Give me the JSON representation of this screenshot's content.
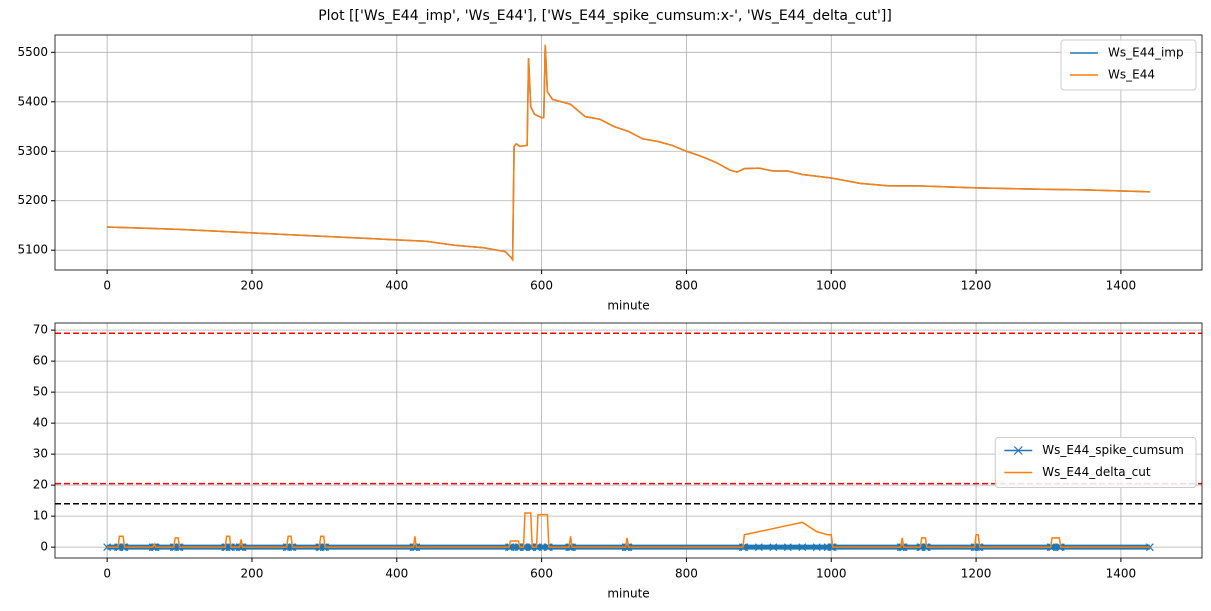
{
  "title": "Plot [['Ws_E44_imp', 'Ws_E44'], ['Ws_E44_spike_cumsum:x-', 'Ws_E44_delta_cut']]",
  "chart_data": [
    {
      "type": "line",
      "x_label": "minute",
      "x": [
        0,
        20,
        100,
        200,
        300,
        400,
        440,
        480,
        520,
        550,
        558,
        560,
        562,
        565,
        570,
        580,
        582,
        585,
        590,
        600,
        603,
        605,
        608,
        615,
        640,
        660,
        680,
        700,
        720,
        740,
        760,
        780,
        800,
        820,
        840,
        860,
        870,
        880,
        900,
        920,
        940,
        960,
        1000,
        1040,
        1080,
        1120,
        1200,
        1300,
        1350,
        1440
      ],
      "series": [
        {
          "name": "Ws_E44_imp",
          "color": "#1f77b4",
          "values": [
            5147,
            5146,
            5142,
            5135,
            5128,
            5121,
            5118,
            5110,
            5105,
            5097,
            5085,
            5081,
            5310,
            5315,
            5310,
            5312,
            5488,
            5390,
            5375,
            5368,
            5368,
            5515,
            5420,
            5405,
            5395,
            5370,
            5365,
            5350,
            5340,
            5325,
            5320,
            5312,
            5300,
            5290,
            5278,
            5262,
            5258,
            5265,
            5266,
            5260,
            5260,
            5253,
            5246,
            5235,
            5230,
            5230,
            5226,
            5223,
            5222,
            5218
          ]
        },
        {
          "name": "Ws_E44",
          "color": "#ff7f0e",
          "values": [
            5147,
            5146,
            5142,
            5135,
            5128,
            5121,
            5118,
            5110,
            5105,
            5097,
            5085,
            5081,
            5310,
            5315,
            5310,
            5312,
            5488,
            5390,
            5375,
            5368,
            5368,
            5515,
            5420,
            5405,
            5395,
            5370,
            5365,
            5350,
            5340,
            5325,
            5320,
            5312,
            5300,
            5290,
            5278,
            5262,
            5258,
            5265,
            5266,
            5260,
            5260,
            5253,
            5246,
            5235,
            5230,
            5230,
            5226,
            5223,
            5222,
            5218
          ]
        }
      ],
      "xlim": [
        -72,
        1512
      ],
      "xticks": [
        0,
        200,
        400,
        600,
        800,
        1000,
        1200,
        1400
      ],
      "ylim": [
        5060,
        5535
      ],
      "yticks": [
        5100,
        5200,
        5300,
        5400,
        5500
      ],
      "grid": true,
      "legend": "upper right"
    },
    {
      "type": "line",
      "x_label": "minute",
      "x": [
        0,
        15,
        17,
        22,
        24,
        63,
        65,
        67,
        92,
        94,
        98,
        100,
        163,
        165,
        169,
        171,
        183,
        185,
        187,
        248,
        250,
        254,
        256,
        293,
        295,
        299,
        301,
        423,
        425,
        427,
        555,
        557,
        568,
        570,
        575,
        577,
        585,
        587,
        593,
        595,
        608,
        610,
        638,
        640,
        642,
        716,
        718,
        720,
        878,
        880,
        900,
        920,
        940,
        960,
        980,
        995,
        1000,
        1002,
        1096,
        1098,
        1100,
        1123,
        1125,
        1130,
        1132,
        1198,
        1200,
        1203,
        1205,
        1303,
        1305,
        1315,
        1317,
        1440
      ],
      "series": [
        {
          "name": "Ws_E44_spike_cumsum",
          "color": "#1f77b4",
          "marker": "x",
          "values": [
            0,
            0,
            0,
            0,
            0,
            0,
            0,
            0,
            0,
            0,
            0,
            0,
            0,
            0,
            0,
            0,
            0,
            0,
            0,
            0,
            0,
            0,
            0,
            0,
            0,
            0,
            0,
            0,
            0,
            0,
            0,
            0,
            0,
            0,
            0,
            0,
            0,
            0,
            0,
            0,
            0,
            0,
            0,
            0,
            0,
            0,
            0,
            0,
            0,
            0,
            0,
            0,
            0,
            0,
            0,
            0,
            0,
            0,
            0,
            0,
            0,
            0,
            0,
            0,
            0,
            0,
            0,
            0,
            0,
            0,
            0,
            0,
            0,
            0
          ]
        },
        {
          "name": "Ws_E44_delta_cut",
          "color": "#ff7f0e",
          "values": [
            0,
            0,
            3.5,
            3.5,
            0,
            0,
            1,
            0,
            0,
            3,
            3,
            0,
            0,
            3.5,
            3.5,
            0,
            0,
            2.5,
            0,
            0,
            3.5,
            3.5,
            0,
            0,
            3.5,
            3.5,
            0,
            0,
            3.5,
            0,
            0,
            2,
            2,
            0,
            0,
            11,
            11,
            0,
            0,
            10.5,
            10.5,
            0,
            0,
            3.5,
            0,
            0,
            3,
            0,
            0,
            4,
            5,
            6,
            7,
            8,
            5,
            4,
            4,
            0,
            0,
            3,
            0,
            0,
            3,
            3,
            0,
            0,
            4,
            4,
            0,
            0,
            3,
            3,
            0,
            0
          ]
        }
      ],
      "hlines": [
        {
          "value": 69,
          "color": "#ff0000"
        },
        {
          "value": 20.5,
          "color": "#ff0000"
        },
        {
          "value": 14,
          "color": "#000000"
        }
      ],
      "xlim": [
        -72,
        1512
      ],
      "xticks": [
        0,
        200,
        400,
        600,
        800,
        1000,
        1200,
        1400
      ],
      "ylim": [
        -3.5,
        72.3
      ],
      "yticks": [
        0,
        10,
        20,
        30,
        40,
        50,
        60,
        70
      ],
      "grid": true,
      "legend": "center right"
    }
  ]
}
